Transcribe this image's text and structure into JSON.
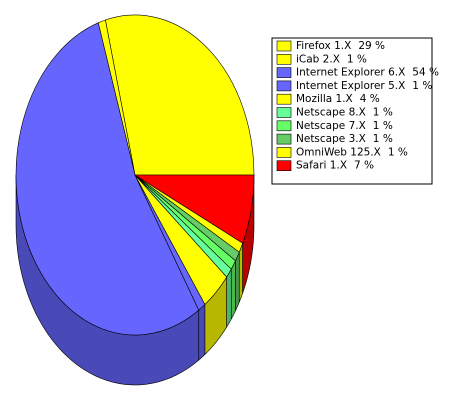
{
  "chart_data": {
    "type": "pie",
    "categories": [
      "Firefox 1.X",
      "iCab 2.X",
      "Internet Explorer 6.X",
      "Internet Explorer 5.X",
      "Mozilla 1.X",
      "Netscape 8.X",
      "Netscape 7.X",
      "Netscape 3.X",
      "OmniWeb 125.X",
      "Safari 1.X"
    ],
    "values": [
      29,
      1,
      54,
      1,
      4,
      1,
      1,
      1,
      1,
      7
    ],
    "value_labels": [
      "29 %",
      "1 %",
      "54 %",
      "1 %",
      "4 %",
      "1 %",
      "1 %",
      "1 %",
      "1 %",
      "7 %"
    ],
    "colors": [
      "#ffff00",
      "#ffff00",
      "#6666ff",
      "#6666ff",
      "#ffff00",
      "#66ff99",
      "#66ff66",
      "#66cc66",
      "#ffff00",
      "#ff0000"
    ],
    "legend": "top-right"
  }
}
